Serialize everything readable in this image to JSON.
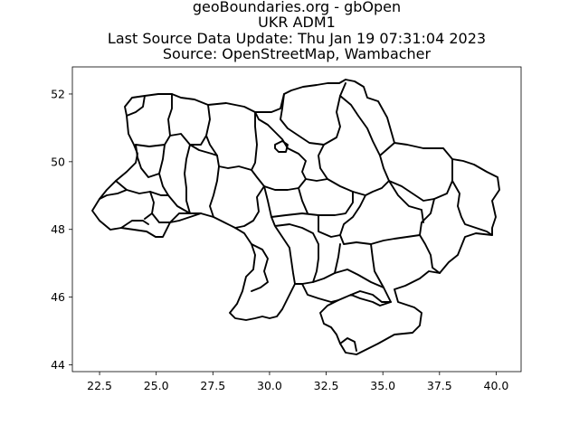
{
  "figure": {
    "title_lines": [
      "geoBoundaries.org - gbOpen",
      "UKR ADM1",
      "Last Source Data Update: Thu Jan 19 07:31:04 2023",
      "Source: OpenStreetMap, Wambacher"
    ]
  },
  "chart_data": {
    "type": "map",
    "xlim": [
      21.3,
      41.1
    ],
    "ylim": [
      43.8,
      52.8
    ],
    "xticks": [
      "22.5",
      "25.0",
      "27.5",
      "30.0",
      "32.5",
      "35.0",
      "37.5",
      "40.0"
    ],
    "yticks": [
      "44",
      "46",
      "48",
      "50",
      "52"
    ],
    "grid": false,
    "legend": "none"
  }
}
